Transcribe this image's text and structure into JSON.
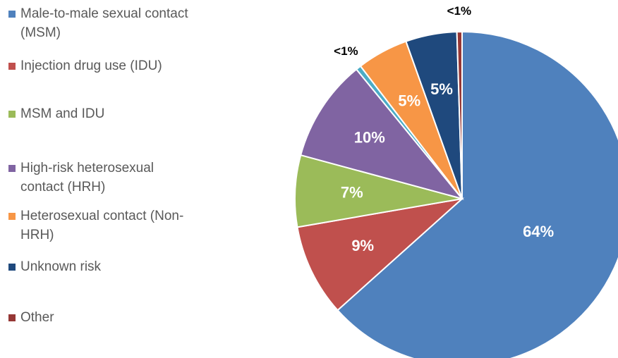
{
  "chart_data": {
    "type": "pie",
    "categories": [
      "Male-to-male sexual contact (MSM)",
      "Injection drug use (IDU)",
      "MSM and IDU",
      "High-risk heterosexual contact (HRH)",
      null,
      "Heterosexual contact (Non-HRH)",
      "Unknown risk",
      "Other"
    ],
    "values": [
      64,
      9,
      7,
      10,
      0.5,
      5,
      5,
      0.5
    ],
    "value_labels": [
      "64%",
      "9%",
      "7%",
      "10%",
      "<1%",
      "5%",
      "5%",
      "<1%"
    ],
    "colors": [
      "#4f81bd",
      "#c0504d",
      "#9bbb59",
      "#8064a2",
      "#4bacc6",
      "#f79646",
      "#1f497d",
      "#953735"
    ],
    "legend": "left"
  }
}
